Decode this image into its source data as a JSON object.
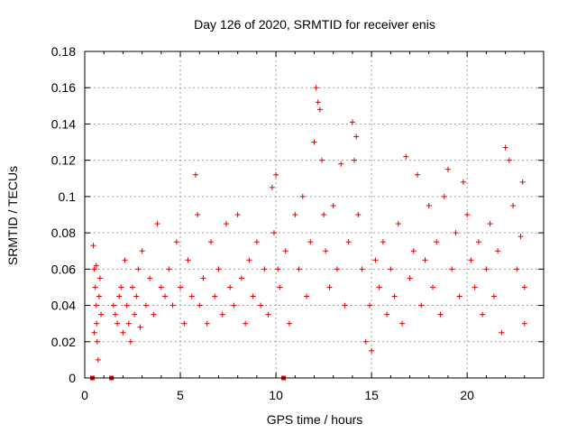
{
  "chart_data": {
    "type": "scatter",
    "title": "Day 126 of 2020, SRMTID for receiver enis",
    "xlabel": "GPS time / hours",
    "ylabel": "SRMTID / TECUs",
    "xlim": [
      0,
      24
    ],
    "ylim": [
      0,
      0.18
    ],
    "x_ticks": [
      0,
      5,
      10,
      15,
      20
    ],
    "y_ticks": [
      0,
      0.02,
      0.04,
      0.06,
      0.08,
      0.1,
      0.12,
      0.14,
      0.16,
      0.18
    ],
    "x_tick_labels": [
      "0",
      "5",
      "10",
      "15",
      "20"
    ],
    "y_tick_labels": [
      "0",
      "0.02",
      "0.04",
      "0.06",
      "0.08",
      "0.1",
      "0.12",
      "0.14",
      "0.16",
      "0.18"
    ],
    "grid": true,
    "marker": "+",
    "color": "#e00000",
    "zero_markers_x": [
      0.4,
      1.4,
      10.4
    ],
    "series": [
      {
        "points": [
          [
            0.45,
            0.073
          ],
          [
            0.5,
            0.06
          ],
          [
            0.55,
            0.05
          ],
          [
            0.6,
            0.04
          ],
          [
            0.62,
            0.03
          ],
          [
            0.65,
            0.02
          ],
          [
            0.7,
            0.01
          ],
          [
            0.75,
            0.045
          ],
          [
            0.8,
            0.055
          ],
          [
            0.85,
            0.035
          ],
          [
            0.5,
            0.025
          ],
          [
            0.6,
            0.062
          ],
          [
            1.5,
            0.04
          ],
          [
            1.6,
            0.035
          ],
          [
            1.7,
            0.03
          ],
          [
            1.8,
            0.045
          ],
          [
            1.9,
            0.05
          ],
          [
            2.0,
            0.025
          ],
          [
            2.1,
            0.065
          ],
          [
            2.2,
            0.04
          ],
          [
            2.3,
            0.03
          ],
          [
            2.4,
            0.02
          ],
          [
            2.5,
            0.05
          ],
          [
            2.6,
            0.035
          ],
          [
            2.7,
            0.045
          ],
          [
            2.8,
            0.06
          ],
          [
            2.9,
            0.028
          ],
          [
            3.0,
            0.07
          ],
          [
            3.2,
            0.04
          ],
          [
            3.4,
            0.055
          ],
          [
            3.6,
            0.035
          ],
          [
            3.8,
            0.085
          ],
          [
            4.0,
            0.05
          ],
          [
            4.2,
            0.045
          ],
          [
            4.4,
            0.06
          ],
          [
            4.6,
            0.04
          ],
          [
            4.8,
            0.075
          ],
          [
            5.0,
            0.05
          ],
          [
            5.2,
            0.03
          ],
          [
            5.4,
            0.065
          ],
          [
            5.6,
            0.045
          ],
          [
            5.8,
            0.112
          ],
          [
            5.9,
            0.09
          ],
          [
            6.0,
            0.04
          ],
          [
            6.2,
            0.055
          ],
          [
            6.4,
            0.03
          ],
          [
            6.6,
            0.075
          ],
          [
            6.8,
            0.045
          ],
          [
            7.0,
            0.06
          ],
          [
            7.2,
            0.035
          ],
          [
            7.4,
            0.085
          ],
          [
            7.6,
            0.05
          ],
          [
            7.8,
            0.04
          ],
          [
            8.0,
            0.09
          ],
          [
            8.2,
            0.055
          ],
          [
            8.4,
            0.03
          ],
          [
            8.6,
            0.065
          ],
          [
            8.8,
            0.045
          ],
          [
            9.0,
            0.075
          ],
          [
            9.2,
            0.04
          ],
          [
            9.4,
            0.06
          ],
          [
            9.6,
            0.035
          ],
          [
            9.8,
            0.105
          ],
          [
            9.9,
            0.08
          ],
          [
            10.0,
            0.112
          ],
          [
            10.1,
            0.06
          ],
          [
            10.2,
            0.05
          ],
          [
            10.5,
            0.07
          ],
          [
            10.7,
            0.03
          ],
          [
            11.0,
            0.09
          ],
          [
            11.2,
            0.06
          ],
          [
            11.4,
            0.1
          ],
          [
            11.6,
            0.045
          ],
          [
            11.8,
            0.075
          ],
          [
            12.0,
            0.13
          ],
          [
            12.1,
            0.16
          ],
          [
            12.2,
            0.152
          ],
          [
            12.3,
            0.148
          ],
          [
            12.4,
            0.12
          ],
          [
            12.5,
            0.09
          ],
          [
            12.6,
            0.07
          ],
          [
            12.8,
            0.05
          ],
          [
            13.0,
            0.095
          ],
          [
            13.2,
            0.06
          ],
          [
            13.4,
            0.118
          ],
          [
            13.6,
            0.04
          ],
          [
            13.8,
            0.075
          ],
          [
            14.0,
            0.141
          ],
          [
            14.1,
            0.12
          ],
          [
            14.2,
            0.133
          ],
          [
            14.3,
            0.09
          ],
          [
            14.5,
            0.06
          ],
          [
            14.7,
            0.02
          ],
          [
            14.9,
            0.04
          ],
          [
            15.0,
            0.015
          ],
          [
            15.2,
            0.065
          ],
          [
            15.4,
            0.05
          ],
          [
            15.6,
            0.075
          ],
          [
            15.8,
            0.035
          ],
          [
            16.0,
            0.06
          ],
          [
            16.2,
            0.045
          ],
          [
            16.4,
            0.085
          ],
          [
            16.6,
            0.03
          ],
          [
            16.8,
            0.122
          ],
          [
            17.0,
            0.055
          ],
          [
            17.2,
            0.07
          ],
          [
            17.4,
            0.112
          ],
          [
            17.6,
            0.04
          ],
          [
            17.8,
            0.065
          ],
          [
            18.0,
            0.095
          ],
          [
            18.2,
            0.05
          ],
          [
            18.4,
            0.075
          ],
          [
            18.6,
            0.035
          ],
          [
            18.8,
            0.1
          ],
          [
            19.0,
            0.115
          ],
          [
            19.2,
            0.06
          ],
          [
            19.4,
            0.08
          ],
          [
            19.6,
            0.045
          ],
          [
            19.8,
            0.108
          ],
          [
            20.0,
            0.09
          ],
          [
            20.2,
            0.065
          ],
          [
            20.4,
            0.05
          ],
          [
            20.6,
            0.075
          ],
          [
            20.8,
            0.035
          ],
          [
            21.0,
            0.06
          ],
          [
            21.2,
            0.085
          ],
          [
            21.4,
            0.045
          ],
          [
            21.6,
            0.07
          ],
          [
            21.8,
            0.025
          ],
          [
            22.0,
            0.127
          ],
          [
            22.2,
            0.12
          ],
          [
            22.4,
            0.095
          ],
          [
            22.6,
            0.06
          ],
          [
            22.8,
            0.078
          ],
          [
            22.9,
            0.108
          ],
          [
            23.0,
            0.05
          ],
          [
            23.0,
            0.03
          ]
        ]
      }
    ]
  }
}
